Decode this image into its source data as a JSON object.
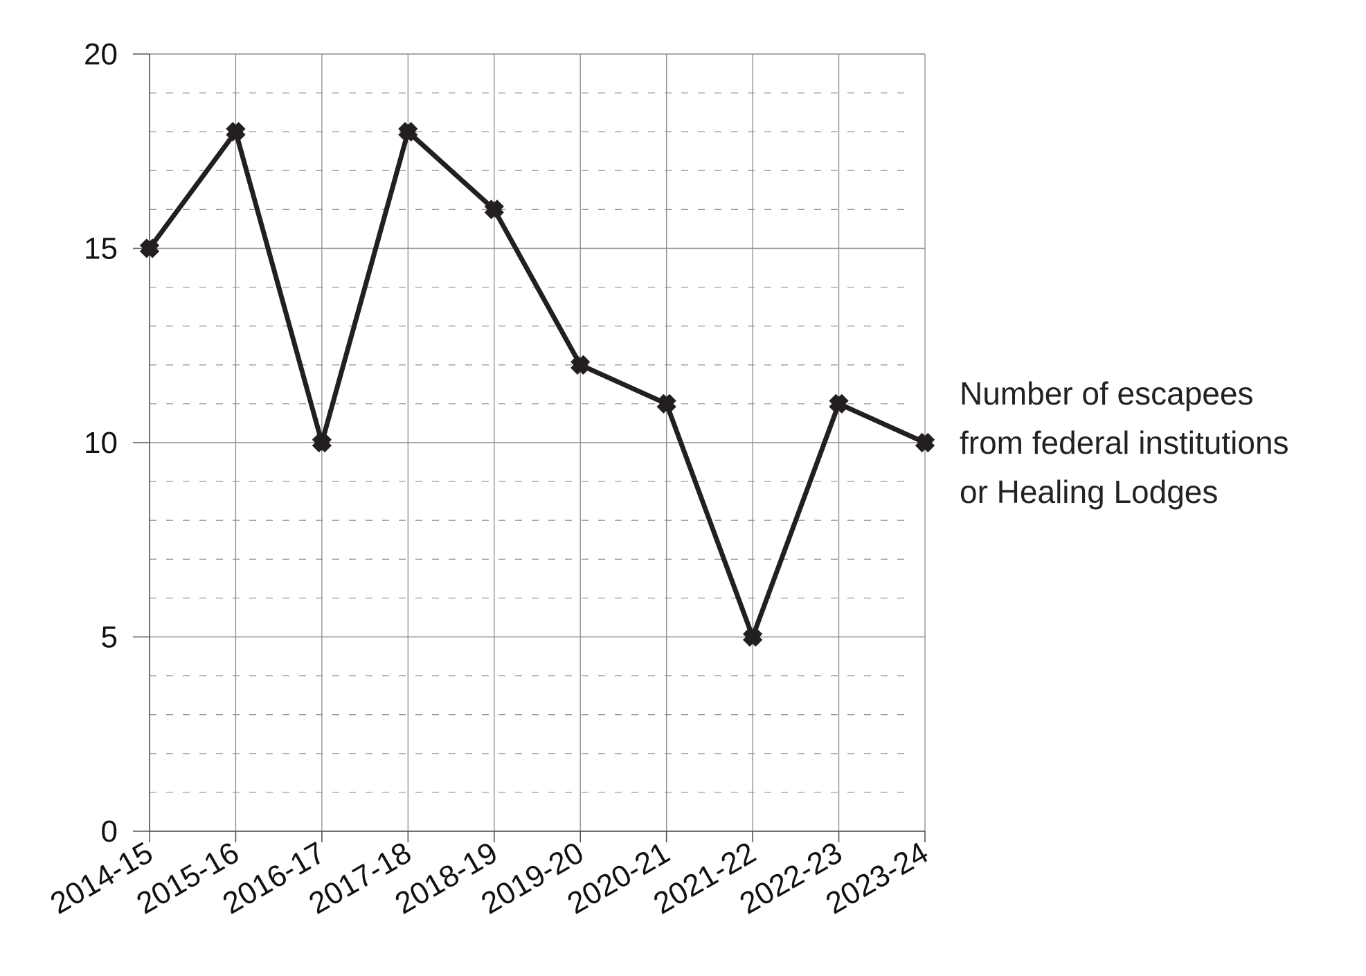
{
  "chart_data": {
    "type": "line",
    "title": "",
    "xlabel": "",
    "ylabel": "",
    "categories": [
      "2014-15",
      "2015-16",
      "2016-17",
      "2017-18",
      "2018-19",
      "2019-20",
      "2020-21",
      "2021-22",
      "2022-23",
      "2023-24"
    ],
    "series": [
      {
        "name": "Number of escapees from federal institutions or Healing Lodges",
        "label_lines": [
          "Number of escapees",
          "from federal institutions",
          "or Healing Lodges"
        ],
        "values": [
          15,
          18,
          10,
          18,
          16,
          12,
          11,
          5,
          11,
          10
        ],
        "color": "#231f20",
        "marker": "cross-star"
      }
    ],
    "ylim": [
      0,
      20
    ],
    "yticks": [
      0,
      5,
      10,
      15,
      20
    ],
    "y_minor_step": 1,
    "grid": {
      "major_horizontal": true,
      "minor_horizontal_dashed": true,
      "vertical": true
    },
    "legend": "right-inline",
    "colors": {
      "line": "#231f20",
      "grid": "#8c8c8c",
      "minor_grid": "#9a9a9a",
      "axis": "#555555",
      "text": "#111111"
    }
  }
}
